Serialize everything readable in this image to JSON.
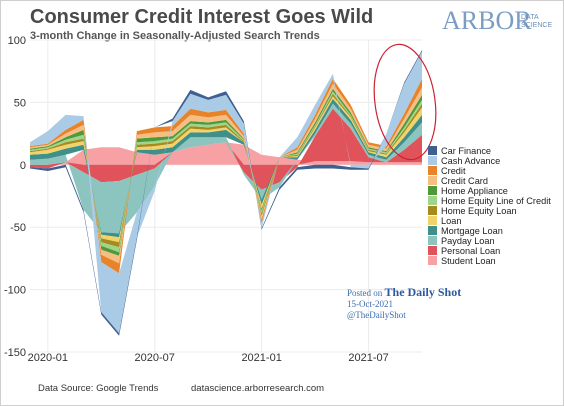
{
  "header": {
    "title": "Consumer Credit Interest Goes Wild",
    "subtitle": "3-month Change in Seasonally-Adjusted Search Trends"
  },
  "logo": {
    "main": "ARBOR",
    "line1": "DATA",
    "line2": "SCIENCE"
  },
  "posted": {
    "prefix": "Posted on",
    "name": "The Daily Shot",
    "date": "15-Oct-2021",
    "handle": "@TheDailyShot"
  },
  "footer": {
    "source": "Data Source: Google Trends",
    "site": "datascience.arborresearch.com"
  },
  "colors": {
    "Car Finance": "#3e5f8f",
    "Cash Advance": "#a9cbe6",
    "Credit": "#e8832a",
    "Credit Card": "#f7be84",
    "Home Appliance": "#4e9a3a",
    "Home Equity Line of Credit": "#9fd58a",
    "Home Equity Loan": "#a88a1c",
    "Loan": "#f2d36b",
    "Mortgage Loan": "#3f8f8a",
    "Payday Loan": "#8cc4bf",
    "Personal Loan": "#e0535a",
    "Student Loan": "#f7a1a4",
    "highlight": "#cc2233"
  },
  "chart_data": {
    "type": "area",
    "title": "Consumer Credit Interest Goes Wild",
    "subtitle": "3-month Change in Seasonally-Adjusted Search Trends",
    "xlabel": "",
    "ylabel": "",
    "x_ticks": [
      "2020-01",
      "2020-07",
      "2021-01",
      "2021-07"
    ],
    "y_ticks": [
      100,
      50,
      0,
      -50,
      -100,
      -150
    ],
    "ylim": [
      -150,
      100
    ],
    "xlim": [
      "2019-12",
      "2021-10"
    ],
    "grid": true,
    "legend_position": "right",
    "highlight": "ellipse around latest values (Sep-Oct 2021)",
    "x": [
      "2019-12",
      "2020-01",
      "2020-02",
      "2020-03",
      "2020-04",
      "2020-05",
      "2020-06",
      "2020-07",
      "2020-08",
      "2020-09",
      "2020-10",
      "2020-11",
      "2020-12",
      "2021-01",
      "2021-02",
      "2021-03",
      "2021-04",
      "2021-05",
      "2021-06",
      "2021-07",
      "2021-08",
      "2021-09",
      "2021-10"
    ],
    "series": [
      {
        "name": "Student Loan",
        "values": [
          0,
          0,
          2,
          12,
          14,
          14,
          10,
          8,
          10,
          14,
          16,
          18,
          16,
          8,
          6,
          4,
          3,
          3,
          3,
          2,
          2,
          2,
          2
        ]
      },
      {
        "name": "Personal Loan",
        "values": [
          -2,
          -3,
          0,
          -6,
          -14,
          -13,
          -8,
          -3,
          0,
          0,
          0,
          0,
          -6,
          -20,
          -14,
          -2,
          20,
          42,
          26,
          4,
          0,
          10,
          22
        ]
      },
      {
        "name": "Payday Loan",
        "values": [
          4,
          5,
          6,
          -30,
          -40,
          -42,
          -30,
          -14,
          0,
          8,
          6,
          4,
          -2,
          -8,
          -4,
          0,
          2,
          4,
          4,
          2,
          2,
          6,
          10
        ]
      },
      {
        "name": "Mortgage Loan",
        "values": [
          4,
          4,
          5,
          4,
          -2,
          -3,
          2,
          4,
          4,
          4,
          4,
          6,
          2,
          -4,
          0,
          2,
          3,
          4,
          3,
          2,
          2,
          4,
          6
        ]
      },
      {
        "name": "Loan",
        "values": [
          2,
          3,
          3,
          3,
          -3,
          -4,
          2,
          3,
          3,
          3,
          2,
          2,
          0,
          -3,
          0,
          1,
          2,
          2,
          2,
          1,
          2,
          4,
          6
        ]
      },
      {
        "name": "Home Equity Loan",
        "values": [
          1,
          1,
          2,
          2,
          -3,
          -4,
          2,
          2,
          2,
          2,
          2,
          2,
          1,
          -2,
          0,
          1,
          1,
          2,
          1,
          1,
          1,
          2,
          3
        ]
      },
      {
        "name": "Home Equity Line of Credit",
        "values": [
          1,
          1,
          2,
          3,
          -3,
          -4,
          2,
          2,
          2,
          2,
          2,
          2,
          1,
          -2,
          0,
          1,
          1,
          2,
          1,
          1,
          1,
          2,
          3
        ]
      },
      {
        "name": "Home Appliance",
        "values": [
          1,
          1,
          2,
          4,
          -3,
          -3,
          3,
          3,
          2,
          2,
          2,
          2,
          1,
          -2,
          0,
          1,
          2,
          2,
          2,
          1,
          1,
          3,
          4
        ]
      },
      {
        "name": "Credit Card",
        "values": [
          1,
          1,
          3,
          4,
          -4,
          -6,
          3,
          4,
          4,
          5,
          4,
          4,
          2,
          -3,
          0,
          2,
          3,
          4,
          3,
          2,
          2,
          4,
          6
        ]
      },
      {
        "name": "Credit",
        "values": [
          1,
          1,
          3,
          4,
          -6,
          -8,
          3,
          4,
          4,
          5,
          4,
          4,
          2,
          -3,
          0,
          2,
          3,
          4,
          3,
          2,
          2,
          4,
          7
        ]
      },
      {
        "name": "Cash Advance",
        "values": [
          3,
          10,
          12,
          3,
          -40,
          -48,
          -20,
          -4,
          4,
          12,
          10,
          12,
          8,
          -4,
          0,
          8,
          8,
          4,
          -2,
          -3,
          10,
          24,
          22
        ]
      },
      {
        "name": "Car Finance",
        "values": [
          -1,
          -2,
          -2,
          -2,
          -2,
          -2,
          -2,
          0,
          2,
          3,
          2,
          3,
          2,
          -1,
          -2,
          -2,
          -3,
          -3,
          -2,
          -1,
          0,
          1,
          1
        ]
      }
    ]
  }
}
